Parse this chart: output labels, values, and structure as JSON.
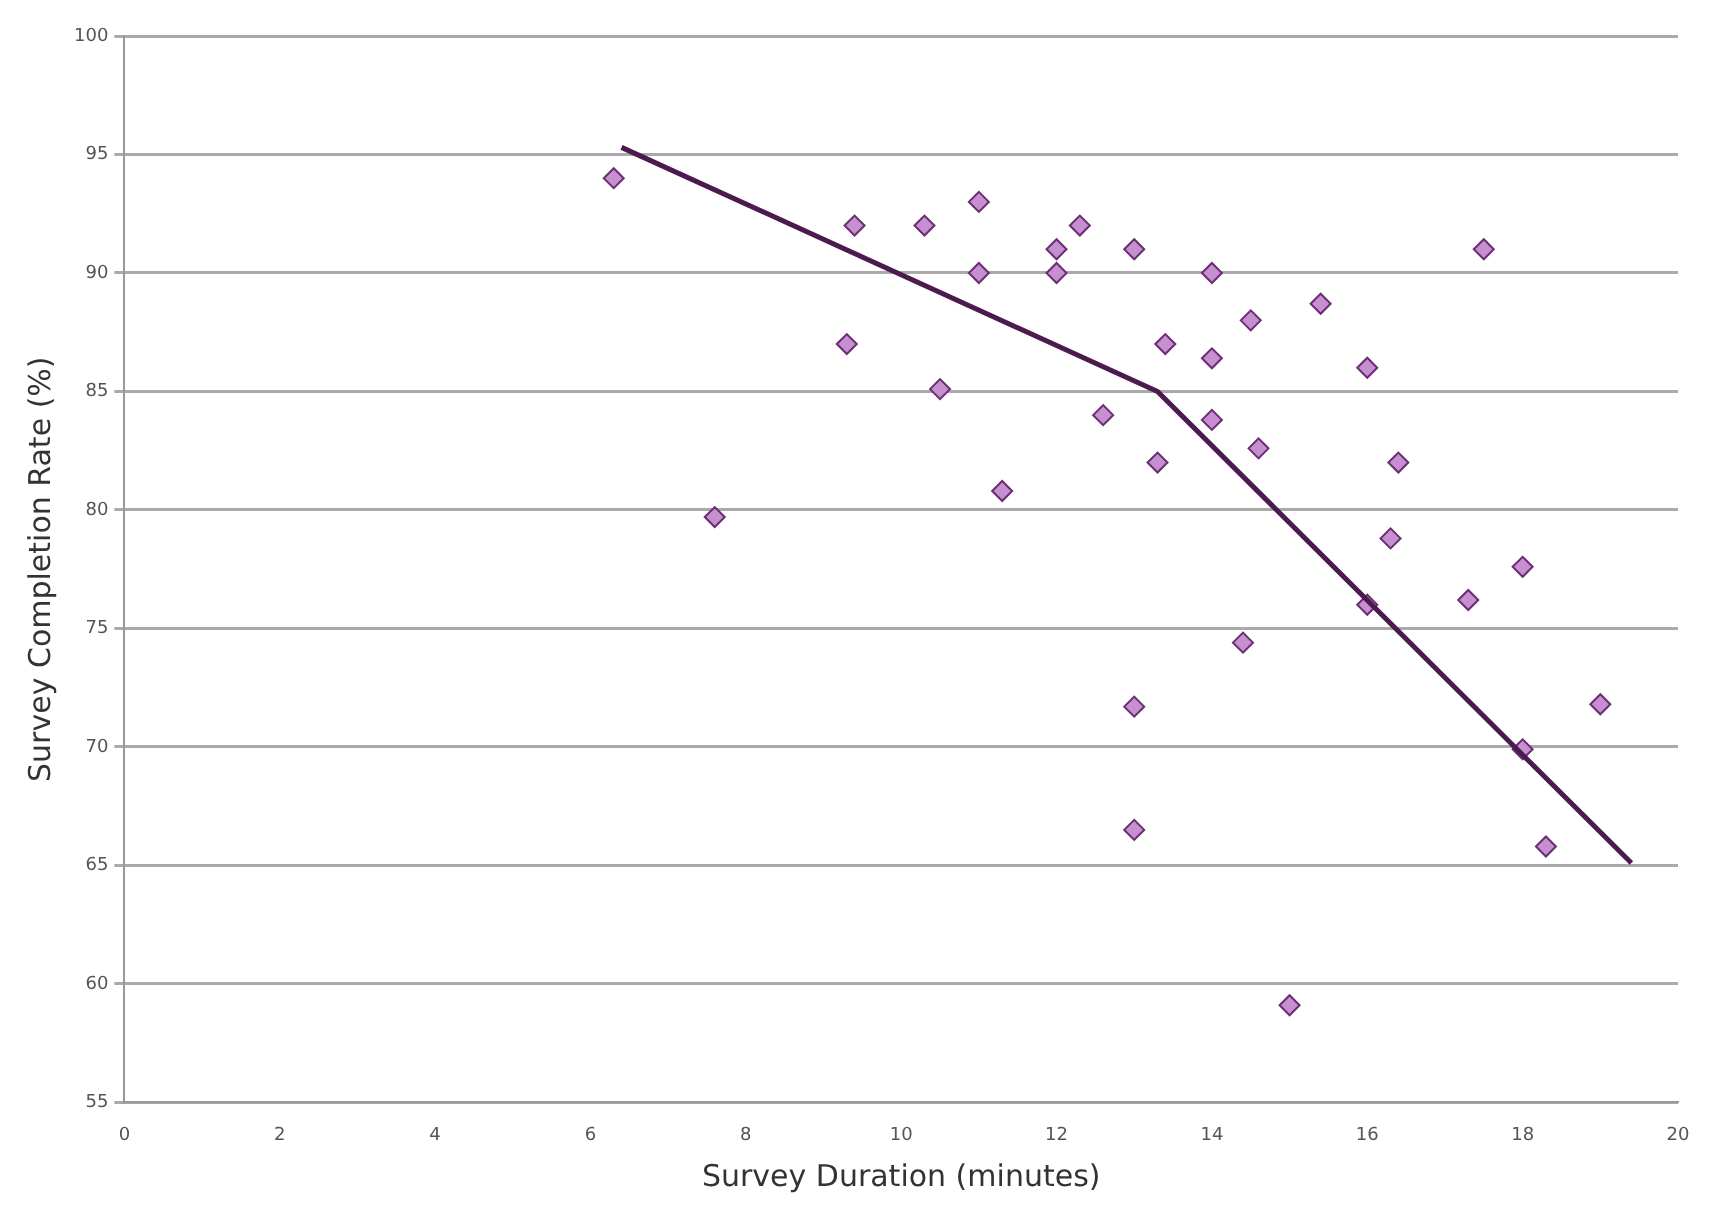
{
  "chart_data": {
    "type": "scatter",
    "xlabel": "Survey Duration (minutes)",
    "ylabel": "Survey Completion Rate (%)",
    "xlim": [
      0,
      20
    ],
    "xticks": [
      0,
      2,
      4,
      6,
      8,
      10,
      12,
      14,
      16,
      18,
      20
    ],
    "ylim": [
      55,
      100
    ],
    "yticks": [
      55,
      60,
      65,
      70,
      75,
      80,
      85,
      90,
      95,
      100
    ],
    "grid": "y",
    "legend": false,
    "marker": "diamond",
    "series": [
      {
        "type": "scatter",
        "color": "#c58fd0",
        "x": [
          6.3,
          7.6,
          9.3,
          9.4,
          10.3,
          10.5,
          11,
          11,
          11.3,
          12,
          12,
          12.3,
          12.6,
          13,
          13,
          13,
          13.3,
          13.4,
          14,
          14,
          14,
          14.4,
          14.5,
          14.6,
          15,
          15.4,
          16,
          16,
          16.3,
          16.4,
          17.3,
          17.5,
          18,
          18,
          18.3,
          19
        ],
        "values": [
          94,
          79.7,
          87,
          92,
          92,
          85.1,
          93,
          90,
          80.8,
          91,
          90,
          92,
          84,
          91,
          71.7,
          66.5,
          82,
          87,
          90,
          86.4,
          83.8,
          74.4,
          88,
          82.6,
          59.1,
          88.7,
          86,
          76,
          78.8,
          82,
          76.2,
          91,
          77.6,
          69.9,
          65.8,
          71.8
        ]
      },
      {
        "type": "line",
        "color": "#4b1a4f",
        "marker": "none",
        "line_style": "solid",
        "x": [
          6.4,
          13.3,
          19.4
        ],
        "values": [
          95.3,
          85,
          65.1
        ]
      }
    ]
  }
}
